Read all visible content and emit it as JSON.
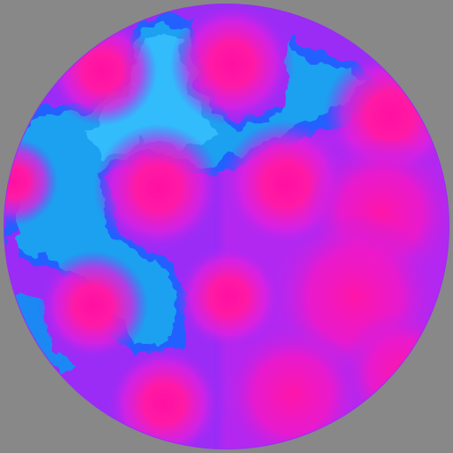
{
  "image": {
    "background_color": "#888888",
    "base_color": "#9a2cf6",
    "blob_color": "#ff1aa5",
    "blob_core_color": "#ff10a0",
    "halo_color": "#2060ff",
    "water_color": "#1aa0f0",
    "water_light_color": "#3cc8ff"
  }
}
